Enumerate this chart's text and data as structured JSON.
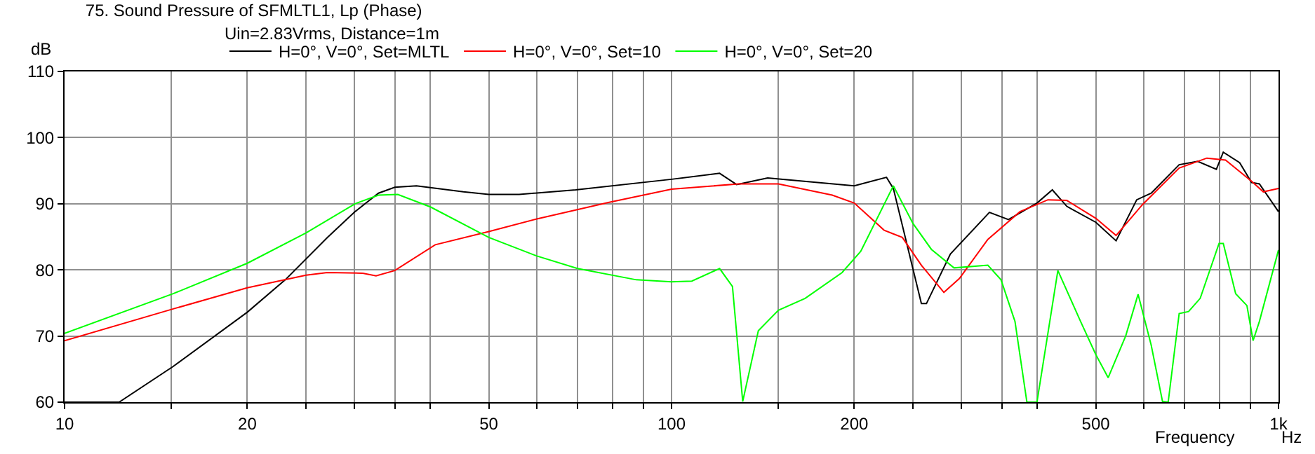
{
  "chart_data": {
    "type": "line",
    "title": "75. Sound Pressure of SFMLTL1, Lp (Phase)",
    "subtitle": "Uin=2.83Vrms, Distance=1m",
    "xlabel": "Frequency",
    "ylabel": "dB",
    "annotations": [
      "Hz"
    ],
    "log": "x",
    "grid": true,
    "legend": "top left",
    "marker": "none",
    "line_style": "solid",
    "xlim": [
      10,
      1000
    ],
    "ylim": [
      60,
      110
    ],
    "xticks": [
      10,
      {
        "value": 15,
        "label": null
      },
      20,
      {
        "value": 25,
        "label": null
      },
      {
        "value": 30,
        "label": null
      },
      {
        "value": 35,
        "label": null
      },
      {
        "value": 40,
        "label": null
      },
      50,
      {
        "value": 60,
        "label": null
      },
      {
        "value": 70,
        "label": null
      },
      {
        "value": 80,
        "label": null
      },
      {
        "value": 90,
        "label": null
      },
      100,
      {
        "value": 150,
        "label": null
      },
      200,
      {
        "value": 250,
        "label": null
      },
      {
        "value": 300,
        "label": null
      },
      {
        "value": 350,
        "label": null
      },
      {
        "value": 400,
        "label": null
      },
      500,
      {
        "value": 600,
        "label": null
      },
      {
        "value": 700,
        "label": null
      },
      {
        "value": 800,
        "label": null
      },
      {
        "value": 900,
        "label": null
      },
      {
        "value": 1000,
        "label": "1k"
      }
    ],
    "yticks": [
      60,
      70,
      80,
      90,
      100,
      110
    ],
    "series": [
      {
        "name": "H=0°, V=0°, Set=MLTL",
        "color": "#000000",
        "x": [
          10,
          12.3,
          15.1,
          20,
          23.1,
          27.1,
          30.1,
          32.9,
          35,
          38,
          45.4,
          50,
          56.1,
          69.5,
          100,
          120,
          128,
          144,
          200,
          226,
          232,
          258,
          263,
          288,
          334,
          359,
          400,
          424,
          448,
          500,
          540,
          584,
          617,
          686,
          736,
          790,
          811,
          863,
          903,
          930,
          1000
        ],
        "values": [
          60,
          60,
          65.4,
          73.6,
          78.5,
          84.9,
          88.8,
          91.6,
          92.5,
          92.7,
          91.8,
          91.4,
          91.4,
          92.1,
          93.7,
          94.6,
          92.9,
          93.9,
          92.7,
          94.0,
          92.3,
          74.9,
          74.9,
          82.4,
          88.7,
          87.6,
          90.1,
          92.1,
          89.6,
          87.2,
          84.4,
          90.6,
          91.6,
          95.9,
          96.4,
          95.2,
          97.8,
          96.2,
          93.2,
          93.0,
          88.8
        ]
      },
      {
        "name": "H=0°, V=0°, Set=10",
        "color": "#ff0000",
        "x": [
          10,
          15.1,
          20,
          25,
          27.1,
          31,
          32.6,
          35,
          40.8,
          50,
          60,
          78.7,
          100,
          129,
          150,
          184,
          200,
          224,
          240,
          258,
          281,
          298,
          332,
          375,
          417,
          448,
          500,
          540,
          596,
          686,
          762,
          818,
          903,
          944,
          1000
        ],
        "values": [
          69.3,
          74.1,
          77.3,
          79.2,
          79.6,
          79.5,
          79.1,
          79.9,
          83.8,
          85.8,
          87.7,
          90.2,
          92.2,
          93.0,
          93.0,
          91.3,
          90.1,
          86.0,
          84.9,
          80.7,
          76.6,
          78.7,
          84.6,
          88.8,
          90.6,
          90.5,
          87.8,
          85.2,
          89.8,
          95.4,
          96.9,
          96.6,
          93.4,
          91.8,
          92.3
        ]
      },
      {
        "name": "H=0°, V=0°, Set=20",
        "color": "#00ff00",
        "x": [
          10,
          15.1,
          20,
          25,
          30.1,
          32.9,
          35.4,
          40.1,
          50,
          60,
          70,
          87.5,
          100,
          108,
          120,
          126,
          131,
          139,
          150,
          166,
          191,
          205,
          232,
          250,
          268,
          292,
          332,
          349,
          368,
          385,
          400,
          433,
          472,
          500,
          524,
          560,
          587,
          617,
          644,
          658,
          686,
          711,
          743,
          798,
          811,
          850,
          887,
          908,
          930,
          1000
        ],
        "values": [
          70.4,
          76.4,
          81.0,
          85.6,
          90.0,
          91.3,
          91.4,
          89.5,
          84.9,
          82.1,
          80.2,
          78.5,
          78.2,
          78.3,
          80.2,
          77.5,
          60.1,
          70.8,
          73.9,
          75.7,
          79.6,
          82.8,
          92.7,
          87.0,
          83.1,
          80.3,
          80.7,
          78.5,
          72.2,
          60,
          60,
          79.9,
          72.2,
          67.2,
          63.7,
          70.0,
          76.3,
          68.6,
          60.1,
          60,
          73.4,
          73.7,
          75.7,
          84.0,
          84.0,
          76.4,
          74.6,
          69.3,
          72.2,
          83.0
        ]
      }
    ]
  }
}
